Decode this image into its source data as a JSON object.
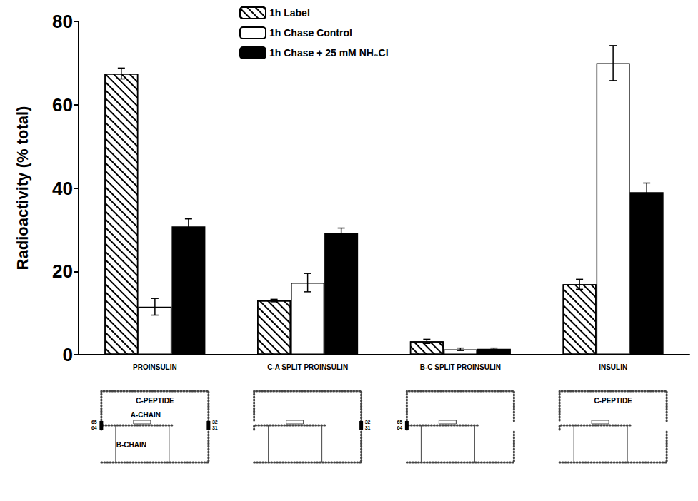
{
  "chart_data": {
    "type": "bar",
    "y_label": "Radioactivity (% total)",
    "categories": [
      "PROINSULIN",
      "C-A SPLIT PROINSULIN",
      "B-C SPLIT PROINSULIN",
      "INSULIN"
    ],
    "series": [
      {
        "name": "1h Label",
        "color": "#ffffff",
        "marker": "hatch",
        "values": [
          67.5,
          13.0,
          3.2,
          16.9
        ],
        "errors": [
          1.3,
          0.3,
          0.5,
          1.2
        ]
      },
      {
        "name": "1h Chase Control",
        "color": "#ffffff",
        "values": [
          11.5,
          17.3,
          1.3,
          70.0
        ],
        "errors": [
          2.0,
          2.2,
          0.3,
          4.2
        ]
      },
      {
        "name": "1h Chase + 25 mM NH₄Cl",
        "color": "#000000",
        "values": [
          30.8,
          29.2,
          1.4,
          39.0
        ],
        "errors": [
          1.8,
          1.2,
          0.2,
          2.2
        ]
      }
    ],
    "ylim": [
      0,
      80
    ],
    "yticks": [
      0,
      20,
      40,
      60,
      80
    ],
    "grid": false,
    "legend": "top",
    "schematics": [
      {
        "labels": [
          "C-PEPTIDE",
          "A-CHAIN",
          "B-CHAIN"
        ],
        "left_site": [
          "65",
          "64"
        ],
        "right_site": [
          "32",
          "31"
        ]
      },
      {
        "labels": [],
        "right_site": [
          "32",
          "31"
        ]
      },
      {
        "labels": [],
        "left_site": [
          "65",
          "64"
        ]
      },
      {
        "labels": [
          "C-PEPTIDE"
        ]
      }
    ]
  }
}
